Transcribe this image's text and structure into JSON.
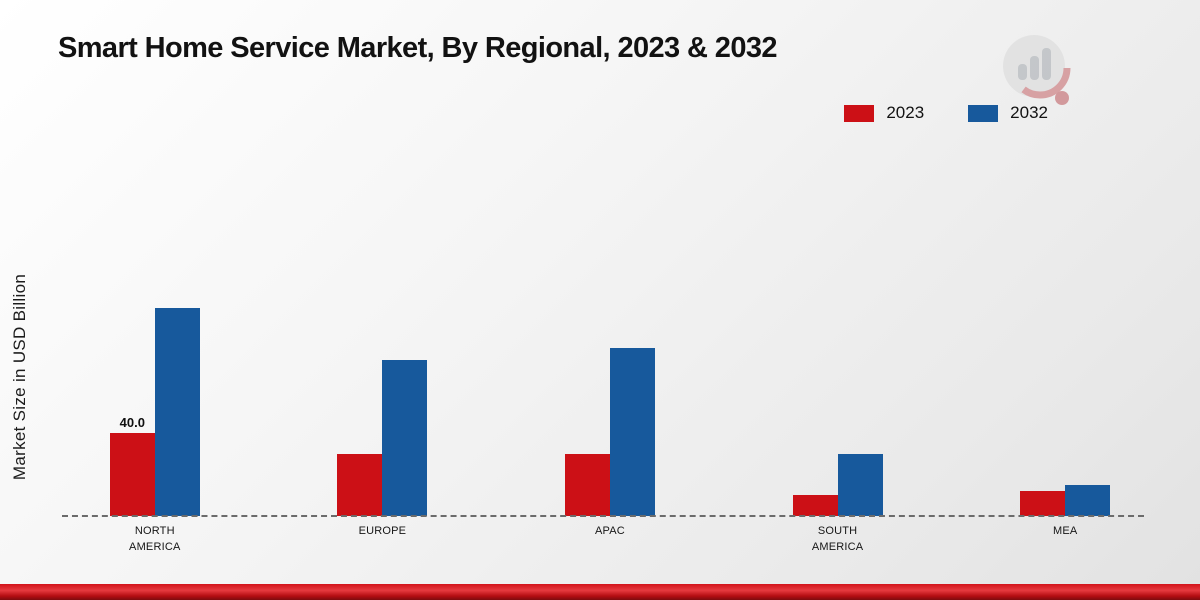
{
  "chart_data": {
    "type": "bar",
    "title": "Smart Home Service Market, By Regional, 2023 & 2032",
    "ylabel": "Market Size in USD Billion",
    "xlabel": "",
    "categories": [
      "NORTH\nAMERICA",
      "EUROPE",
      "APAC",
      "SOUTH\nAMERICA",
      "MEA"
    ],
    "series": [
      {
        "name": "2023",
        "color": "#cc1016",
        "values": [
          40.0,
          30.0,
          30.0,
          10.0,
          12.0
        ],
        "value_labels": [
          "40.0",
          "",
          "",
          "",
          ""
        ]
      },
      {
        "name": "2032",
        "color": "#17599c",
        "values": [
          100.0,
          75.0,
          81.0,
          30.0,
          15.0
        ],
        "value_labels": [
          "",
          "",
          "",
          "",
          ""
        ]
      }
    ],
    "ylim": [
      0,
      110
    ],
    "grid": false,
    "legend_position": "top-right",
    "baseline_style": "dashed",
    "colors": {
      "series_2023": "#cc1016",
      "series_2032": "#17599c",
      "footer_accent": "#d2131a",
      "background": "#ededed"
    }
  }
}
